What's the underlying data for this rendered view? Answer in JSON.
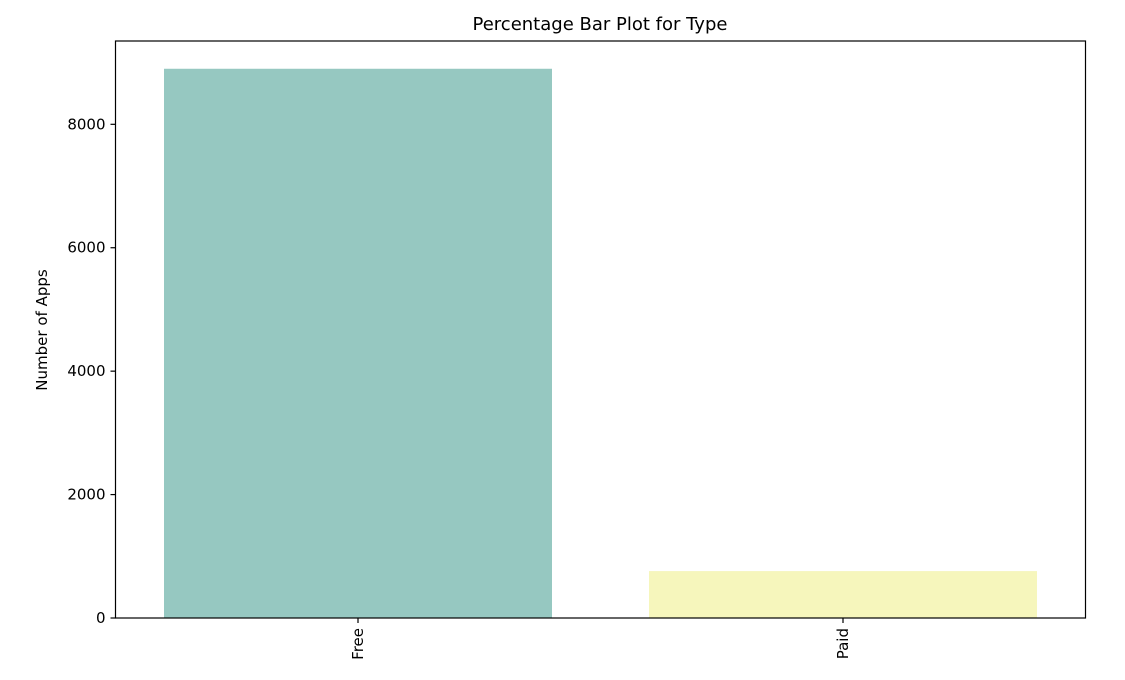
{
  "chart_data": {
    "type": "bar",
    "title": "Percentage Bar Plot for Type",
    "xlabel": "",
    "ylabel": "Number of Apps",
    "categories": [
      "Free",
      "Paid"
    ],
    "values": [
      8900,
      760
    ],
    "colors": [
      "#96c8c1",
      "#f6f6bc"
    ],
    "ylim": [
      0,
      9350
    ],
    "yticks": [
      0,
      2000,
      4000,
      6000,
      8000
    ],
    "ytick_labels": [
      "0",
      "2000",
      "4000",
      "6000",
      "8000"
    ],
    "xtick_rotation": "vertical",
    "grid": false,
    "legend": "none"
  }
}
